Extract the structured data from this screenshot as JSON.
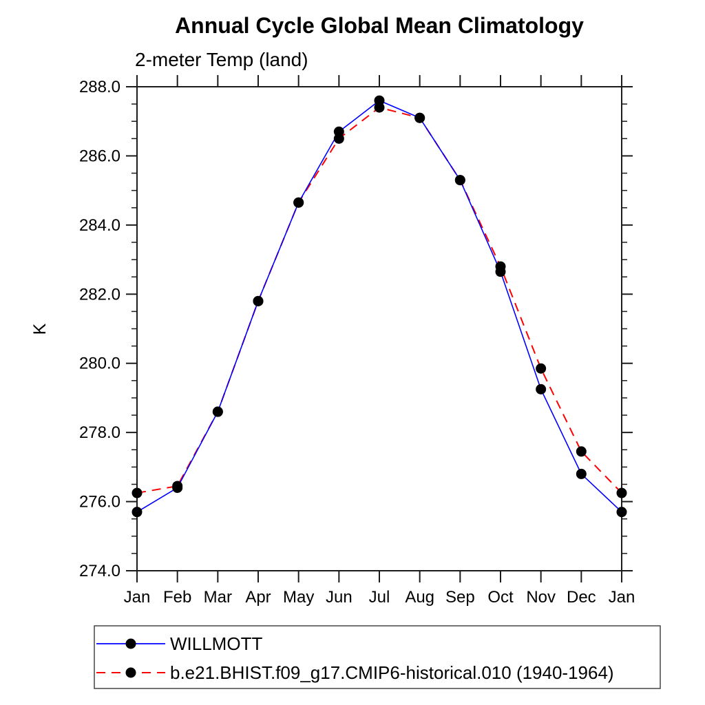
{
  "title": "Annual Cycle Global Mean Climatology",
  "subtitle": "2-meter Temp (land)",
  "ylabel": "K",
  "chart_data": {
    "type": "line",
    "categories": [
      "Jan",
      "Feb",
      "Mar",
      "Apr",
      "May",
      "Jun",
      "Jul",
      "Aug",
      "Sep",
      "Oct",
      "Nov",
      "Dec",
      "Jan"
    ],
    "series": [
      {
        "name": "WILLMOTT",
        "color": "#0000ff",
        "line_style": "solid",
        "marker": "black-dot",
        "values": [
          275.7,
          276.4,
          278.6,
          281.8,
          284.65,
          286.7,
          287.6,
          287.1,
          285.3,
          282.65,
          279.25,
          276.8,
          275.7
        ]
      },
      {
        "name": "b.e21.BHIST.f09_g17.CMIP6-historical.010 (1940-1964)",
        "color": "#ff0000",
        "line_style": "dashed",
        "marker": "black-dot",
        "values": [
          276.25,
          276.45,
          278.6,
          281.8,
          284.65,
          286.5,
          287.4,
          287.1,
          285.3,
          282.8,
          279.85,
          277.45,
          276.25
        ]
      }
    ],
    "ylim": [
      274.0,
      288.0
    ],
    "yticks_major": [
      {
        "v": 274.0,
        "label": "274.0"
      },
      {
        "v": 276.0,
        "label": "276.0"
      },
      {
        "v": 278.0,
        "label": "278.0"
      },
      {
        "v": 280.0,
        "label": "280.0"
      },
      {
        "v": 282.0,
        "label": "282.0"
      },
      {
        "v": 284.0,
        "label": "284.0"
      },
      {
        "v": 286.0,
        "label": "286.0"
      },
      {
        "v": 288.0,
        "label": "288.0"
      }
    ],
    "ytick_minor_step": 0.5,
    "grid": false,
    "legend_position": "bottom-left",
    "marker_color": "#000000",
    "axis_color": "#1a1a1a"
  }
}
